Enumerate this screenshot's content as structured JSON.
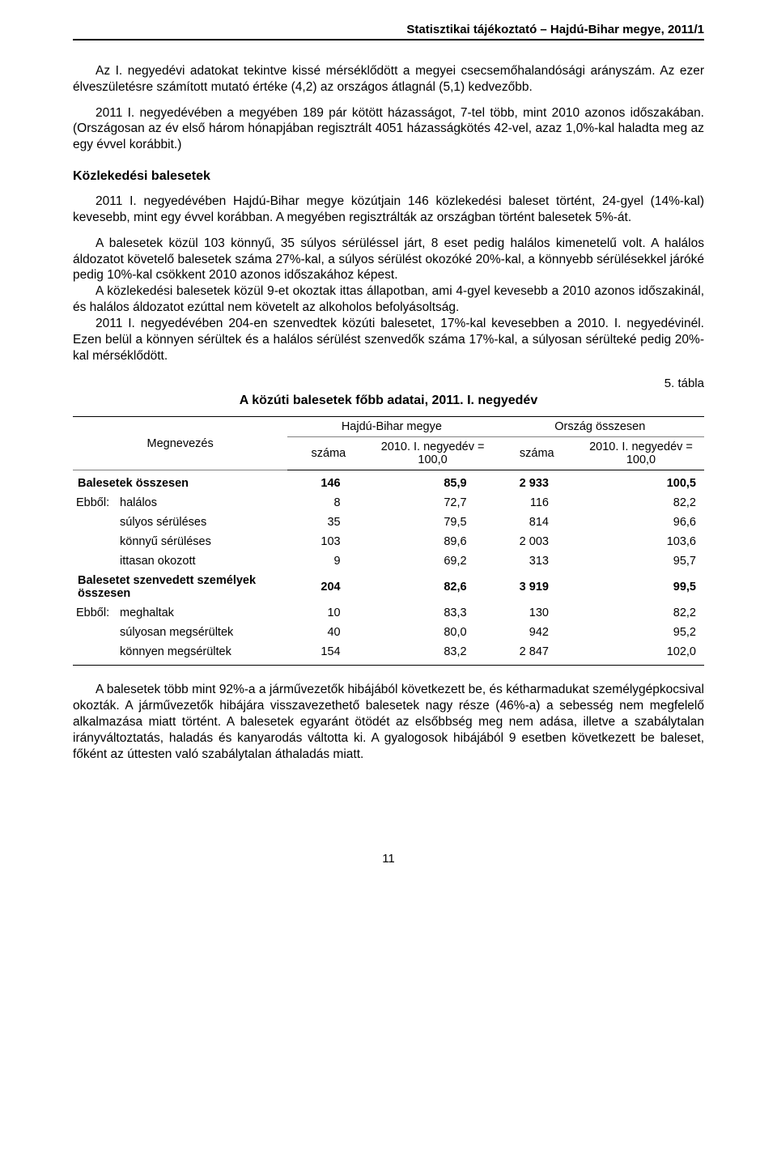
{
  "header": "Statisztikai tájékoztató – Hajdú-Bihar megye, 2011/1",
  "para1": "Az I. negyedévi adatokat tekintve kissé mérséklődött a megyei csecsemőhalandósági arányszám. Az ezer élveszületésre számított mutató értéke (4,2) az országos átlagnál (5,1) kedvezőbb.",
  "para2": "2011 I. negyedévében a megyében 189 pár kötött házasságot, 7-tel több, mint 2010 azonos időszakában. (Országosan az év első három hónapjában regisztrált 4051 házasságkötés 42-vel, azaz 1,0%-kal haladta meg az egy évvel korábbit.)",
  "section_heading": "Közlekedési balesetek",
  "para3": "2011 I. negyedévében Hajdú-Bihar megye közútjain 146 közlekedési baleset történt, 24-gyel (14%-kal) kevesebb, mint egy évvel korábban. A megyében regisztrálták az országban történt balesetek 5%-át.",
  "para4": "A balesetek közül 103 könnyű, 35 súlyos sérüléssel járt, 8 eset pedig halálos kimenetelű volt. A halálos áldozatot követelő balesetek száma 27%-kal, a súlyos sérülést okozóké 20%-kal, a könnyebb sérülésekkel járóké pedig 10%-kal csökkent 2010 azonos időszakához képest.",
  "para5": "A közlekedési balesetek közül 9-et okoztak ittas állapotban, ami 4-gyel kevesebb a 2010 azonos időszakinál, és halálos áldozatot ezúttal nem követelt az alkoholos befolyásoltság.",
  "para6": "2011 I. negyedévében 204-en szenvedtek közúti balesetet, 17%-kal kevesebben a 2010. I. negyedévinél. Ezen belül a könnyen sérültek és a halálos sérülést szenvedők száma 17%-kal, a súlyosan sérülteké pedig 20%-kal mérséklődött.",
  "table": {
    "caption_right": "5. tábla",
    "title": "A közúti balesetek főbb adatai, 2011. I. negyedév",
    "col_megnevezes": "Megnevezés",
    "group1": "Hajdú-Bihar megye",
    "group2": "Ország összesen",
    "sub_szama": "száma",
    "sub_index": "2010. I. negyedév = 100,0",
    "rows": [
      {
        "label": "Balesetek összesen",
        "bold": true,
        "sub": false,
        "ebbol": "",
        "c1": "146",
        "c2": "85,9",
        "c3": "2 933",
        "c4": "100,5"
      },
      {
        "label": "halálos",
        "bold": false,
        "sub": true,
        "ebbol": "Ebből:",
        "c1": "8",
        "c2": "72,7",
        "c3": "116",
        "c4": "82,2"
      },
      {
        "label": "súlyos sérüléses",
        "bold": false,
        "sub": true,
        "ebbol": "",
        "c1": "35",
        "c2": "79,5",
        "c3": "814",
        "c4": "96,6"
      },
      {
        "label": "könnyű sérüléses",
        "bold": false,
        "sub": true,
        "ebbol": "",
        "c1": "103",
        "c2": "89,6",
        "c3": "2 003",
        "c4": "103,6"
      },
      {
        "label": "ittasan okozott",
        "bold": false,
        "sub": true,
        "ebbol": "",
        "c1": "9",
        "c2": "69,2",
        "c3": "313",
        "c4": "95,7"
      },
      {
        "label": "Balesetet szenvedett személyek összesen",
        "bold": true,
        "sub": false,
        "ebbol": "",
        "c1": "204",
        "c2": "82,6",
        "c3": "3 919",
        "c4": "99,5"
      },
      {
        "label": "meghaltak",
        "bold": false,
        "sub": true,
        "ebbol": "Ebből:",
        "c1": "10",
        "c2": "83,3",
        "c3": "130",
        "c4": "82,2"
      },
      {
        "label": "súlyosan megsérültek",
        "bold": false,
        "sub": true,
        "ebbol": "",
        "c1": "40",
        "c2": "80,0",
        "c3": "942",
        "c4": "95,2"
      },
      {
        "label": "könnyen megsérültek",
        "bold": false,
        "sub": true,
        "ebbol": "",
        "c1": "154",
        "c2": "83,2",
        "c3": "2 847",
        "c4": "102,0"
      }
    ]
  },
  "para7": "A balesetek több mint 92%-a a járművezetők hibájából következett be, és kétharmadukat személygépkocsival okozták. A járművezetők hibájára visszavezethető balesetek nagy része (46%-a) a sebesség nem megfelelő alkalmazása miatt történt. A balesetek egyaránt ötödét az elsőbbség meg nem adása, illetve a szabálytalan irányváltoztatás, haladás és kanyarodás váltotta ki. A gyalogosok hibájából 9 esetben következett be baleset, főként az úttesten való szabálytalan áthaladás miatt.",
  "page_number": "11"
}
